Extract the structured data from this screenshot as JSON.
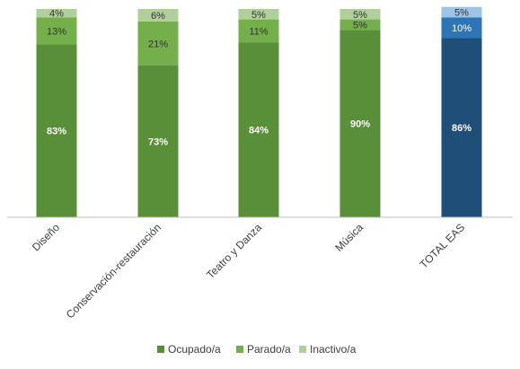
{
  "chart_data": {
    "type": "bar",
    "stacked": true,
    "normalized_percent": true,
    "categories": [
      "Diseño",
      "Conservación-restauración",
      "Teatro y Danza",
      "Música",
      "TOTAL EAS"
    ],
    "series": [
      {
        "name": "Ocupado/a",
        "values": [
          83,
          73,
          84,
          90,
          86
        ],
        "labels": [
          "83%",
          "73%",
          "84%",
          "90%",
          "86%"
        ]
      },
      {
        "name": "Parado/a",
        "values": [
          13,
          21,
          11,
          5,
          10
        ],
        "labels": [
          "13%",
          "21%",
          "11%",
          "5%",
          "10%"
        ]
      },
      {
        "name": "Inactivo/a",
        "values": [
          4,
          6,
          5,
          5,
          5
        ],
        "labels": [
          "4%",
          "6%",
          "5%",
          "5%",
          "5%"
        ]
      }
    ],
    "ylim": [
      0,
      100
    ],
    "grid": false,
    "legend_position": "bottom-center",
    "colors": {
      "default": [
        "#5a8f3a",
        "#75af4b",
        "#b1cf9a"
      ],
      "highlight": [
        "#1f4e79",
        "#2e75b6",
        "#9dc3e6"
      ]
    },
    "highlight_category": "TOTAL EAS"
  }
}
